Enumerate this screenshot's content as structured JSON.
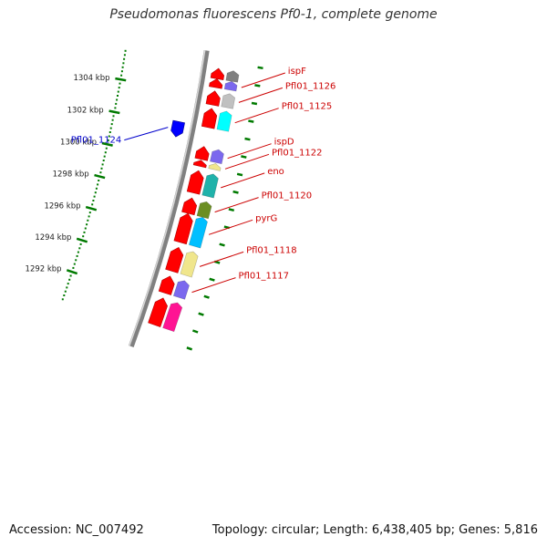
{
  "title": "Pseudomonas fluorescens Pf0-1, complete genome",
  "footer": {
    "accession": "Accession: NC_007492",
    "summary": "Topology: circular; Length: 6,438,405 bp; Genes: 5,816"
  },
  "colors": {
    "cds": "#ff0000",
    "backbone": "#808080",
    "tick": "#007a00",
    "label_plus": "#cc0000",
    "label_minus": "#0000cc"
  },
  "ruler": [
    {
      "pos": 1292,
      "label": "1292 kbp"
    },
    {
      "pos": 1294,
      "label": "1294 kbp"
    },
    {
      "pos": 1296,
      "label": "1296 kbp"
    },
    {
      "pos": 1298,
      "label": "1298 kbp"
    },
    {
      "pos": 1300,
      "label": "1300 kbp"
    },
    {
      "pos": 1302,
      "label": "1302 kbp"
    },
    {
      "pos": 1304,
      "label": "1304 kbp"
    }
  ],
  "genes": [
    {
      "name": "",
      "start": 1290.6,
      "end": 1292.2,
      "strand": "+",
      "color": "#ff1493"
    },
    {
      "name": "Pfl01_1117",
      "start": 1292.5,
      "end": 1293.5,
      "strand": "+",
      "color": "#7b68ee"
    },
    {
      "name": "Pfl01_1118",
      "start": 1293.8,
      "end": 1295.2,
      "strand": "+",
      "color": "#f0e68c"
    },
    {
      "name": "pyrG",
      "start": 1295.5,
      "end": 1297.2,
      "strand": "+",
      "color": "#00bfff"
    },
    {
      "name": "Pfl01_1120",
      "start": 1297.2,
      "end": 1298.1,
      "strand": "+",
      "color": "#6b8e23"
    },
    {
      "name": "eno",
      "start": 1298.4,
      "end": 1299.7,
      "strand": "+",
      "color": "#20b2aa"
    },
    {
      "name": "Pfl01_1122",
      "start": 1299.95,
      "end": 1300.3,
      "strand": "+",
      "color": "#f0e68c"
    },
    {
      "name": "ispD",
      "start": 1300.35,
      "end": 1301.1,
      "strand": "+",
      "color": "#7b68ee"
    },
    {
      "name": "Pfl01_1124",
      "start": 1301.3,
      "end": 1302.2,
      "strand": "-",
      "color": "#0000ff"
    },
    {
      "name": "Pfl01_1125",
      "start": 1302.2,
      "end": 1303.3,
      "strand": "+",
      "color": "#00ffff"
    },
    {
      "name": "Pfl01_1126",
      "start": 1303.5,
      "end": 1304.3,
      "strand": "+",
      "color": "#c0c0c0"
    },
    {
      "name": "ispF",
      "start": 1304.5,
      "end": 1305.0,
      "strand": "+",
      "color": "#7b68ee"
    },
    {
      "name": "",
      "start": 1305.0,
      "end": 1305.6,
      "strand": "+",
      "color": "#808080"
    }
  ]
}
